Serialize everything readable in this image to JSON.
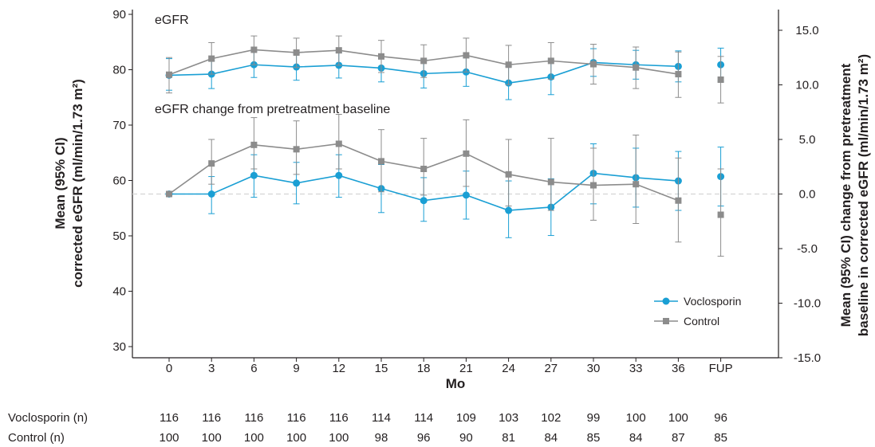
{
  "chart_data": {
    "type": "line",
    "xlabel": "Mo",
    "x_categories": [
      "0",
      "3",
      "6",
      "9",
      "12",
      "15",
      "18",
      "21",
      "24",
      "27",
      "30",
      "33",
      "36",
      "FUP"
    ],
    "left_axis": {
      "label_line1": "Mean (95% CI)",
      "label_line2": "corrected eGFR (ml/min/1.73 m²)",
      "ylim": [
        28,
        90
      ],
      "ticks": [
        30,
        40,
        50,
        60,
        70,
        80,
        90
      ]
    },
    "right_axis": {
      "label_line1": "Mean (95% CI) change from pretreatment",
      "label_line2": "baseline in corrected eGFR (ml/min/1.73 m²)",
      "ylim": [
        -15,
        16.5
      ],
      "ticks": [
        -15,
        -10,
        -5,
        0,
        5,
        10,
        15
      ],
      "tick_labels": [
        "-15.0",
        "-10.0",
        "-5.0",
        "0.0",
        "5.0",
        "10.0",
        "15.0"
      ]
    },
    "panel_labels": {
      "top": "eGFR",
      "bottom": "eGFR change from pretreatment baseline"
    },
    "reference_line": {
      "axis": "right",
      "value": 0
    },
    "legend": {
      "position": "bottom-right"
    },
    "series_colors": {
      "voclosporin": "#1a9fd4",
      "control": "#8c8c8c"
    },
    "panels": {
      "egfr": {
        "axis": "left",
        "series": [
          {
            "name": "Voclosporin",
            "key": "voclosporin",
            "marker": "circle",
            "values": [
              79.0,
              79.2,
              80.9,
              80.5,
              80.8,
              80.3,
              79.3,
              79.6,
              77.6,
              78.7,
              81.3,
              80.9,
              80.6,
              80.9
            ],
            "lower": [
              76.3,
              76.6,
              78.6,
              78.1,
              78.5,
              77.8,
              76.7,
              77.0,
              74.6,
              75.5,
              78.8,
              78.3,
              77.8,
              77.9
            ],
            "upper": [
              82.0,
              81.6,
              83.3,
              82.9,
              83.1,
              82.8,
              81.9,
              82.2,
              80.6,
              81.9,
              83.8,
              83.5,
              83.4,
              83.9
            ]
          },
          {
            "name": "Control",
            "key": "control",
            "marker": "square",
            "values": [
              79.1,
              82.0,
              83.6,
              83.1,
              83.5,
              82.4,
              81.6,
              82.6,
              80.9,
              81.6,
              81.0,
              80.4,
              79.2,
              78.2
            ],
            "lower": [
              75.8,
              79.2,
              80.9,
              80.4,
              80.8,
              79.5,
              78.6,
              79.6,
              77.3,
              78.3,
              77.4,
              76.6,
              75.0,
              74.0
            ],
            "upper": [
              82.2,
              84.9,
              86.1,
              85.7,
              86.1,
              85.3,
              84.5,
              85.7,
              84.4,
              84.9,
              84.6,
              84.1,
              83.2,
              82.4
            ]
          }
        ]
      },
      "change": {
        "axis": "right",
        "series": [
          {
            "name": "Voclosporin",
            "key": "voclosporin",
            "marker": "circle",
            "values": [
              0.0,
              0.0,
              1.7,
              1.0,
              1.7,
              0.5,
              -0.6,
              -0.1,
              -1.5,
              -1.2,
              1.9,
              1.5,
              1.2,
              1.6
            ],
            "lower": [
              0.0,
              -1.8,
              -0.3,
              -0.9,
              -0.3,
              -1.7,
              -2.5,
              -2.3,
              -4.0,
              -3.8,
              -0.9,
              -1.2,
              -1.5,
              -1.1
            ],
            "upper": [
              0.0,
              1.6,
              3.6,
              2.9,
              3.6,
              2.7,
              1.5,
              2.1,
              1.2,
              1.4,
              4.6,
              4.2,
              3.9,
              4.3
            ]
          },
          {
            "name": "Control",
            "key": "control",
            "marker": "square",
            "values": [
              0.0,
              2.8,
              4.5,
              4.1,
              4.6,
              3.0,
              2.3,
              3.7,
              1.8,
              1.1,
              0.8,
              0.9,
              -0.6,
              -1.9
            ],
            "lower": [
              -0.2,
              0.9,
              2.3,
              1.8,
              2.3,
              0.2,
              -0.1,
              0.7,
              -1.1,
              -1.5,
              -2.4,
              -2.7,
              -4.4,
              -5.7
            ],
            "upper": [
              0.2,
              5.0,
              7.0,
              6.7,
              7.3,
              5.9,
              5.1,
              6.8,
              5.0,
              5.1,
              4.2,
              5.4,
              3.3,
              2.3
            ]
          }
        ]
      }
    },
    "number_at_risk": {
      "rows": [
        {
          "label": "Voclosporin (n)",
          "values": [
            "116",
            "116",
            "116",
            "116",
            "116",
            "114",
            "114",
            "109",
            "103",
            "102",
            "99",
            "100",
            "100",
            "96"
          ]
        },
        {
          "label": "Control (n)",
          "values": [
            "100",
            "100",
            "100",
            "100",
            "100",
            "98",
            "96",
            "90",
            "81",
            "84",
            "85",
            "84",
            "87",
            "85"
          ]
        }
      ]
    }
  }
}
